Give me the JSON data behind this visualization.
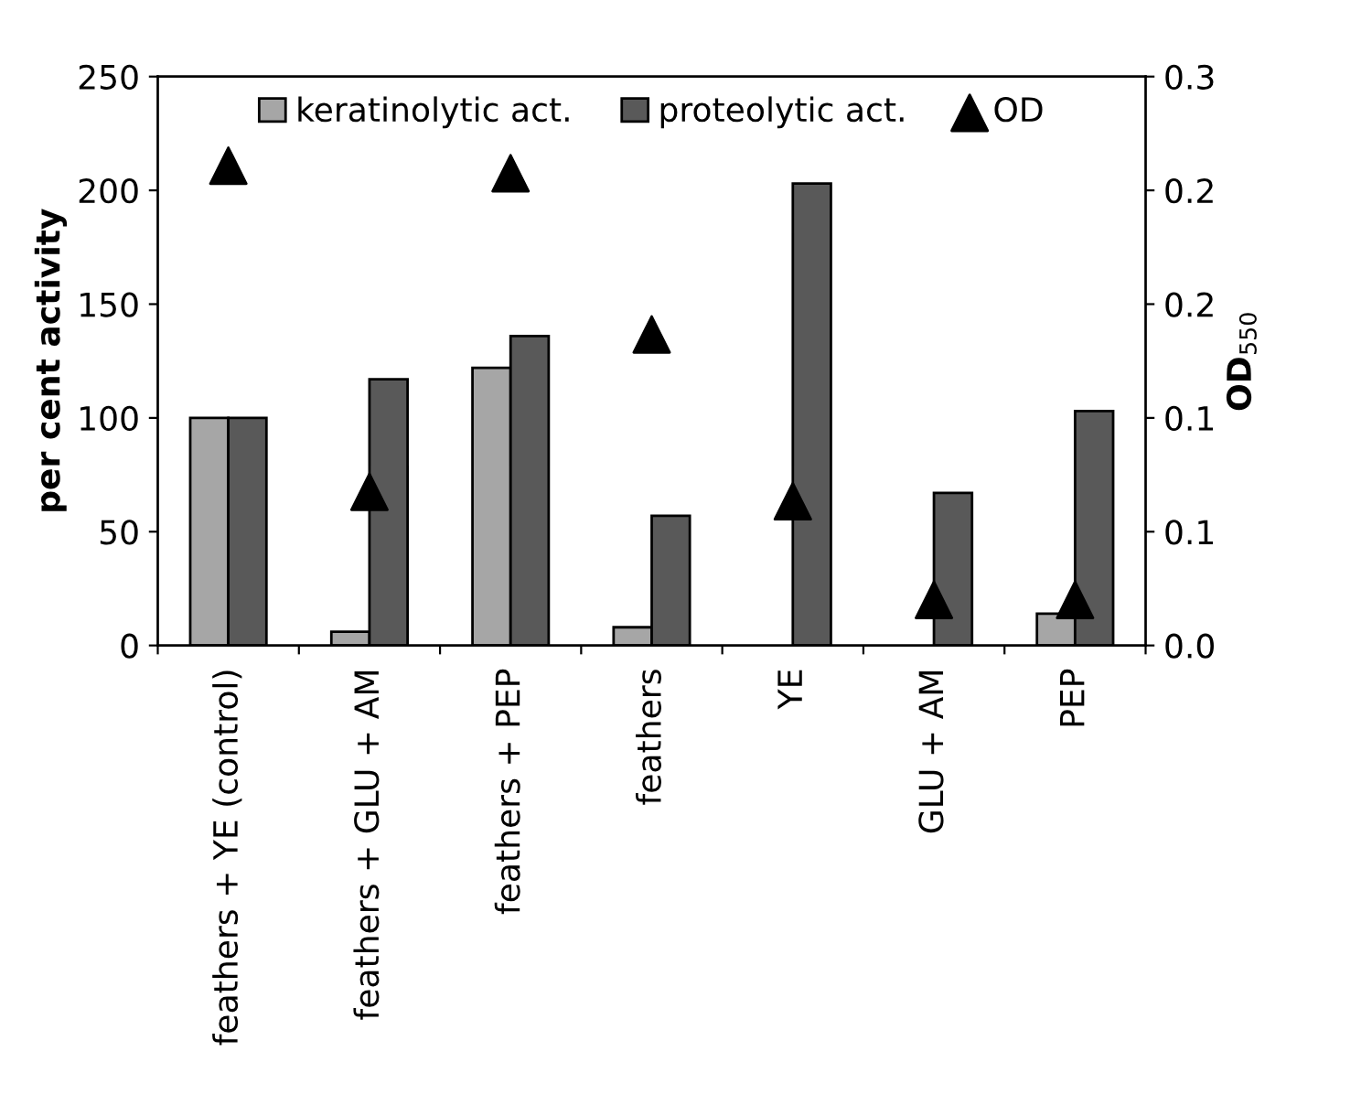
{
  "chart_data": {
    "type": "bar",
    "categories": [
      "feathers + YE (control)",
      "feathers + GLU + AM",
      "feathers + PEP",
      "feathers",
      "YE",
      "GLU + AM",
      "PEP"
    ],
    "ylabel": "per cent activity",
    "y2label": "OD$_{550}$",
    "series": [
      {
        "name": "keratinolytic act.",
        "color": "#a6a6a6",
        "values": [
          100,
          6,
          122,
          8,
          null,
          null,
          14
        ]
      },
      {
        "name": "proteolytic act.",
        "color": "#595959",
        "values": [
          100,
          117,
          136,
          57,
          203,
          67,
          103
        ]
      },
      {
        "name": "OD",
        "type": "scatter",
        "axis": "y2",
        "marker": "triangle",
        "color": "#000000",
        "values": [
          0.253,
          0.081,
          0.249,
          0.164,
          0.076,
          0.024,
          0.024
        ]
      }
    ],
    "ylim": [
      0,
      250
    ],
    "yticks": [
      0,
      50,
      100,
      150,
      200,
      250
    ],
    "y2lim": [
      0,
      0.3
    ],
    "y2ticks": [
      {
        "value": 0,
        "label": "0.0"
      },
      {
        "value": 0.06,
        "label": "0.1"
      },
      {
        "value": 0.12,
        "label": "0.1"
      },
      {
        "value": 0.18,
        "label": "0.2"
      },
      {
        "value": 0.24,
        "label": "0.2"
      },
      {
        "value": 0.3,
        "label": "0.3"
      }
    ],
    "grid": false,
    "legend": "top"
  }
}
